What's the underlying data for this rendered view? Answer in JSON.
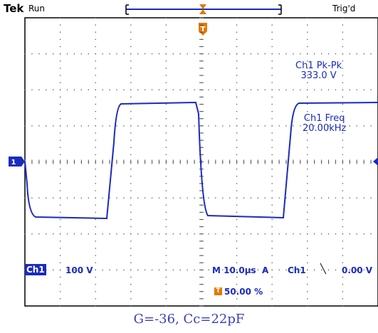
{
  "header": {
    "brand": "Tek",
    "acq_state": "Run",
    "trigger_state": "Trig'd"
  },
  "measurements": [
    {
      "label": "Ch1 Pk-Pk",
      "value": "333.0 V"
    },
    {
      "label": "Ch1 Freq",
      "value": "20.00kHz"
    }
  ],
  "footer": {
    "channel": "Ch1",
    "volts_per_div": "100 V",
    "timebase": "M 10.0µs  A",
    "trigger_source": "Ch1",
    "trigger_slope_icon": "falling-edge-icon",
    "trigger_level": "0.00 V",
    "trigger_position_marker": "T",
    "trigger_position": "50.00 %"
  },
  "markers": {
    "channel_ground": "1",
    "trigger_marker": "T"
  },
  "caption": "G=-36, Cc=22pF",
  "colors": {
    "trace": "#1a2bbf",
    "trigger": "#e07b00",
    "grid": "#000000",
    "background": "#ffffff"
  }
}
